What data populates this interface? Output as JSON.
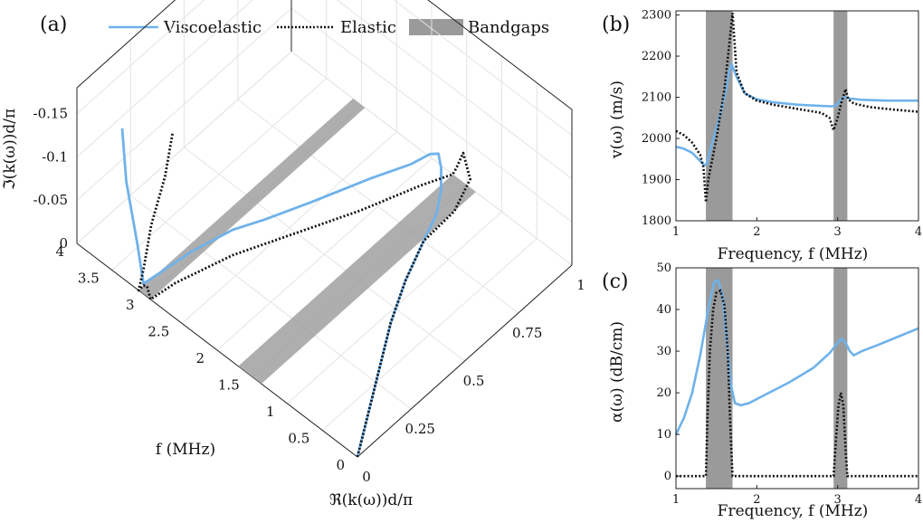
{
  "colors": {
    "viscoelastic": "#6fb2ea",
    "elastic": "#111111",
    "bandgap": "#9a9a9a",
    "grid": "#e4e4e4"
  },
  "legend": {
    "viscoelastic": "Viscoelastic",
    "elastic": "Elastic",
    "bandgaps": "Bandgaps"
  },
  "panels": {
    "a": "(a)",
    "b": "(b)",
    "c": "(c)"
  },
  "chart_data": [
    {
      "panel": "a",
      "type": "line",
      "projection": "3d",
      "xlabel": "ℜ(k(ω))d/π",
      "ylabel": "f  (MHz)",
      "zlabel": "ℑ(k(ω))d/π",
      "x_ticks": [
        "0",
        "0.25",
        "0.5",
        "0.75",
        "1"
      ],
      "y_ticks": [
        "0",
        "0.5",
        "1",
        "1.5",
        "2",
        "2.5",
        "3",
        "3.5",
        "4"
      ],
      "z_ticks": [
        "0",
        "-0.05",
        "-0.1",
        "-0.15"
      ],
      "xlim": [
        0,
        1
      ],
      "ylim": [
        0,
        4
      ],
      "zlim": [
        0,
        -0.18
      ],
      "bandgaps": [
        [
          1.37,
          1.7
        ],
        [
          2.95,
          3.12
        ]
      ],
      "grid": true,
      "series": [
        {
          "name": "Viscoelastic",
          "style": "solid",
          "x": [
            0,
            0.15,
            0.3,
            0.45,
            0.6,
            0.75,
            0.85,
            0.9,
            0.93,
            0.95,
            0.96,
            0.92,
            0.8,
            0.6,
            0.45,
            0.35,
            0.2,
            0.0,
            0.02,
            0.05,
            0.08
          ],
          "y": [
            0,
            0.3,
            0.6,
            0.9,
            1.15,
            1.35,
            1.47,
            1.56,
            1.65,
            1.75,
            1.9,
            2.05,
            2.25,
            2.5,
            2.7,
            2.85,
            2.98,
            3.05,
            3.2,
            3.45,
            3.6
          ],
          "z": [
            0,
            0,
            0,
            0,
            0,
            0,
            -0.002,
            -0.012,
            -0.026,
            -0.032,
            -0.02,
            -0.008,
            -0.006,
            -0.007,
            -0.008,
            -0.009,
            -0.009,
            -0.012,
            -0.045,
            -0.095,
            -0.14
          ]
        },
        {
          "name": "Elastic",
          "style": "dotted",
          "x": [
            0,
            0.15,
            0.3,
            0.45,
            0.6,
            0.75,
            0.9,
            1.0,
            1.0,
            1.0,
            1.0,
            0.9,
            0.7,
            0.5,
            0.3,
            0.1,
            0.0,
            0.0,
            0.0,
            0.0,
            0.05,
            0.15,
            0.28,
            0.38
          ],
          "y": [
            0,
            0.3,
            0.6,
            0.9,
            1.15,
            1.35,
            1.37,
            1.45,
            1.55,
            1.65,
            1.7,
            1.85,
            2.1,
            2.4,
            2.7,
            2.9,
            2.95,
            3.0,
            3.05,
            3.12,
            3.2,
            3.4,
            3.6,
            3.8
          ],
          "z": [
            0,
            0,
            0,
            0,
            0,
            0,
            0,
            -0.01,
            -0.034,
            -0.01,
            0,
            0,
            0,
            0,
            0,
            0,
            0,
            -0.012,
            -0.01,
            0,
            -0.01,
            -0.025,
            -0.04,
            -0.055
          ]
        }
      ]
    },
    {
      "panel": "b",
      "type": "line",
      "xlabel": "Frequency, f (MHz)",
      "ylabel": "v(ω) (m/s)",
      "x_ticks": [
        "1",
        "2",
        "3",
        "4"
      ],
      "y_ticks": [
        "1800",
        "1900",
        "2000",
        "2100",
        "2200",
        "2300"
      ],
      "xlim": [
        1,
        4
      ],
      "ylim": [
        1800,
        2310
      ],
      "bandgaps": [
        [
          1.37,
          1.7
        ],
        [
          2.95,
          3.12
        ]
      ],
      "grid": false,
      "series": [
        {
          "name": "Viscoelastic",
          "style": "solid",
          "x": [
            1,
            1.1,
            1.2,
            1.3,
            1.35,
            1.38,
            1.45,
            1.55,
            1.62,
            1.66,
            1.69,
            1.75,
            1.85,
            2.0,
            2.2,
            2.5,
            2.8,
            2.93,
            2.98,
            3.02,
            3.06,
            3.1,
            3.15,
            3.3,
            3.6,
            4.0
          ],
          "y": [
            1980,
            1975,
            1965,
            1945,
            1935,
            1938,
            1990,
            2060,
            2120,
            2165,
            2180,
            2150,
            2110,
            2095,
            2088,
            2082,
            2079,
            2078,
            2080,
            2090,
            2098,
            2100,
            2097,
            2094,
            2092,
            2092
          ]
        },
        {
          "name": "Elastic",
          "style": "dotted",
          "x": [
            1,
            1.1,
            1.2,
            1.3,
            1.34,
            1.37,
            1.4,
            1.5,
            1.6,
            1.66,
            1.7,
            1.75,
            1.85,
            2.0,
            2.2,
            2.5,
            2.8,
            2.9,
            2.95,
            3.0,
            3.05,
            3.1,
            3.13,
            3.2,
            3.4,
            3.7,
            4.0
          ],
          "y": [
            2018,
            2008,
            1990,
            1960,
            1930,
            1845,
            1900,
            2000,
            2120,
            2230,
            2305,
            2160,
            2110,
            2092,
            2082,
            2072,
            2062,
            2050,
            2020,
            2050,
            2090,
            2120,
            2095,
            2085,
            2076,
            2070,
            2065
          ]
        }
      ]
    },
    {
      "panel": "c",
      "type": "line",
      "xlabel": "Frequency, f (MHz)",
      "ylabel": "α(ω) (dB/cm)",
      "x_ticks": [
        "1",
        "2",
        "3",
        "4"
      ],
      "y_ticks": [
        "0",
        "10",
        "20",
        "30",
        "40",
        "50"
      ],
      "xlim": [
        1,
        4
      ],
      "ylim": [
        -3,
        50
      ],
      "bandgaps": [
        [
          1.37,
          1.7
        ],
        [
          2.95,
          3.12
        ]
      ],
      "grid": false,
      "series": [
        {
          "name": "Viscoelastic",
          "style": "solid",
          "x": [
            1,
            1.1,
            1.2,
            1.3,
            1.4,
            1.47,
            1.52,
            1.58,
            1.63,
            1.68,
            1.73,
            1.8,
            1.9,
            2.1,
            2.4,
            2.7,
            2.9,
            3.0,
            3.05,
            3.1,
            3.15,
            3.2,
            3.3,
            3.5,
            3.75,
            4.0
          ],
          "y": [
            10,
            14,
            20,
            29,
            40,
            46.5,
            47,
            43,
            32,
            22,
            17.5,
            17,
            17.5,
            19.5,
            22.5,
            26,
            29.5,
            32,
            33,
            32,
            30,
            29,
            30,
            31.5,
            33.5,
            35.5
          ]
        },
        {
          "name": "Elastic",
          "style": "dotted",
          "x": [
            1,
            1.37,
            1.39,
            1.42,
            1.46,
            1.5,
            1.55,
            1.6,
            1.64,
            1.67,
            1.7,
            2.0,
            2.95,
            2.98,
            3.01,
            3.04,
            3.07,
            3.1,
            3.12,
            3.5,
            4.0
          ],
          "y": [
            0,
            0,
            14,
            30,
            40,
            44,
            44.5,
            41,
            30,
            13,
            0,
            0,
            0,
            9,
            17,
            20,
            17,
            6,
            0,
            0,
            0
          ]
        }
      ]
    }
  ]
}
